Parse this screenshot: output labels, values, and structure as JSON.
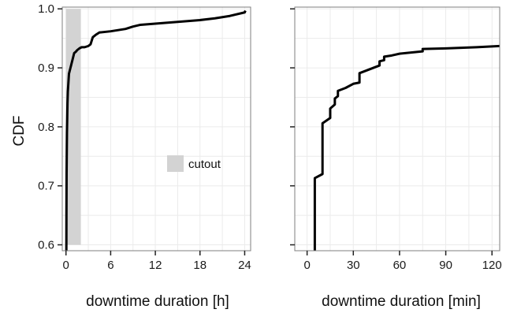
{
  "colors": {
    "line": "#000000",
    "cutout_fill": "#d3d3d3",
    "grid": "#ebebeb",
    "panel_border": "#7f7f7f",
    "background": "#ffffff"
  },
  "chart_data": [
    {
      "type": "line",
      "title": "",
      "xlabel": "downtime duration [h]",
      "ylabel": "CDF",
      "xlim": [
        -0.5,
        24.8
      ],
      "ylim": [
        0.59,
        1.003
      ],
      "x_ticks": [
        0,
        6,
        12,
        18,
        24
      ],
      "x_tick_labels": [
        "0",
        "6",
        "12",
        "18",
        "24"
      ],
      "y_ticks": [
        0.6,
        0.7,
        0.8,
        0.9,
        1.0
      ],
      "y_tick_labels": [
        "0.6",
        "0.7",
        "0.8",
        "0.9",
        "1.0"
      ],
      "grid": true,
      "legend": {
        "position": "inside-lower-right",
        "entries": [
          "cutout"
        ]
      },
      "shaded_region": {
        "label": "cutout",
        "x": [
          0,
          2
        ],
        "y": [
          0.6,
          1.0
        ]
      },
      "series": [
        {
          "x": [
            0.05,
            0.06,
            0.08,
            0.1,
            0.13,
            0.16,
            0.2,
            0.25,
            0.3,
            0.35,
            0.4,
            0.5,
            0.6,
            0.7,
            0.8,
            0.9,
            1.0,
            1.1,
            1.3,
            1.5,
            1.8,
            2.1,
            2.5,
            3.0,
            3.3,
            3.6,
            4.0,
            4.5,
            6.0,
            7.0,
            8.0,
            9.0,
            10.0,
            12.0,
            14.0,
            16.0,
            18.0,
            20.0,
            22.0,
            24.0,
            24.1
          ],
          "y": [
            0.59,
            0.65,
            0.72,
            0.75,
            0.79,
            0.81,
            0.84,
            0.86,
            0.87,
            0.88,
            0.89,
            0.895,
            0.9,
            0.905,
            0.91,
            0.915,
            0.92,
            0.925,
            0.927,
            0.93,
            0.933,
            0.935,
            0.935,
            0.937,
            0.94,
            0.952,
            0.956,
            0.96,
            0.962,
            0.964,
            0.966,
            0.97,
            0.973,
            0.975,
            0.977,
            0.979,
            0.981,
            0.984,
            0.988,
            0.994,
            0.997
          ]
        }
      ]
    },
    {
      "type": "line",
      "title": "",
      "xlabel": "downtime duration [min]",
      "ylabel": "",
      "xlim": [
        -8,
        125
      ],
      "ylim": [
        0.59,
        1.003
      ],
      "x_ticks": [
        0,
        30,
        60,
        90,
        120
      ],
      "x_tick_labels": [
        "0",
        "30",
        "60",
        "90",
        "120"
      ],
      "y_ticks": [
        0.6,
        0.7,
        0.8,
        0.9,
        1.0
      ],
      "y_tick_labels": [],
      "grid": true,
      "series": [
        {
          "x": [
            5,
            5,
            10,
            10,
            15,
            15,
            18,
            18,
            20,
            20,
            25,
            30,
            34,
            34,
            40,
            45,
            47,
            47,
            50,
            50,
            55,
            60,
            75,
            75,
            90,
            110,
            125
          ],
          "y": [
            0.59,
            0.713,
            0.72,
            0.806,
            0.815,
            0.831,
            0.838,
            0.848,
            0.852,
            0.861,
            0.866,
            0.873,
            0.875,
            0.891,
            0.897,
            0.902,
            0.904,
            0.911,
            0.913,
            0.919,
            0.921,
            0.924,
            0.928,
            0.932,
            0.933,
            0.935,
            0.937
          ]
        }
      ]
    }
  ]
}
